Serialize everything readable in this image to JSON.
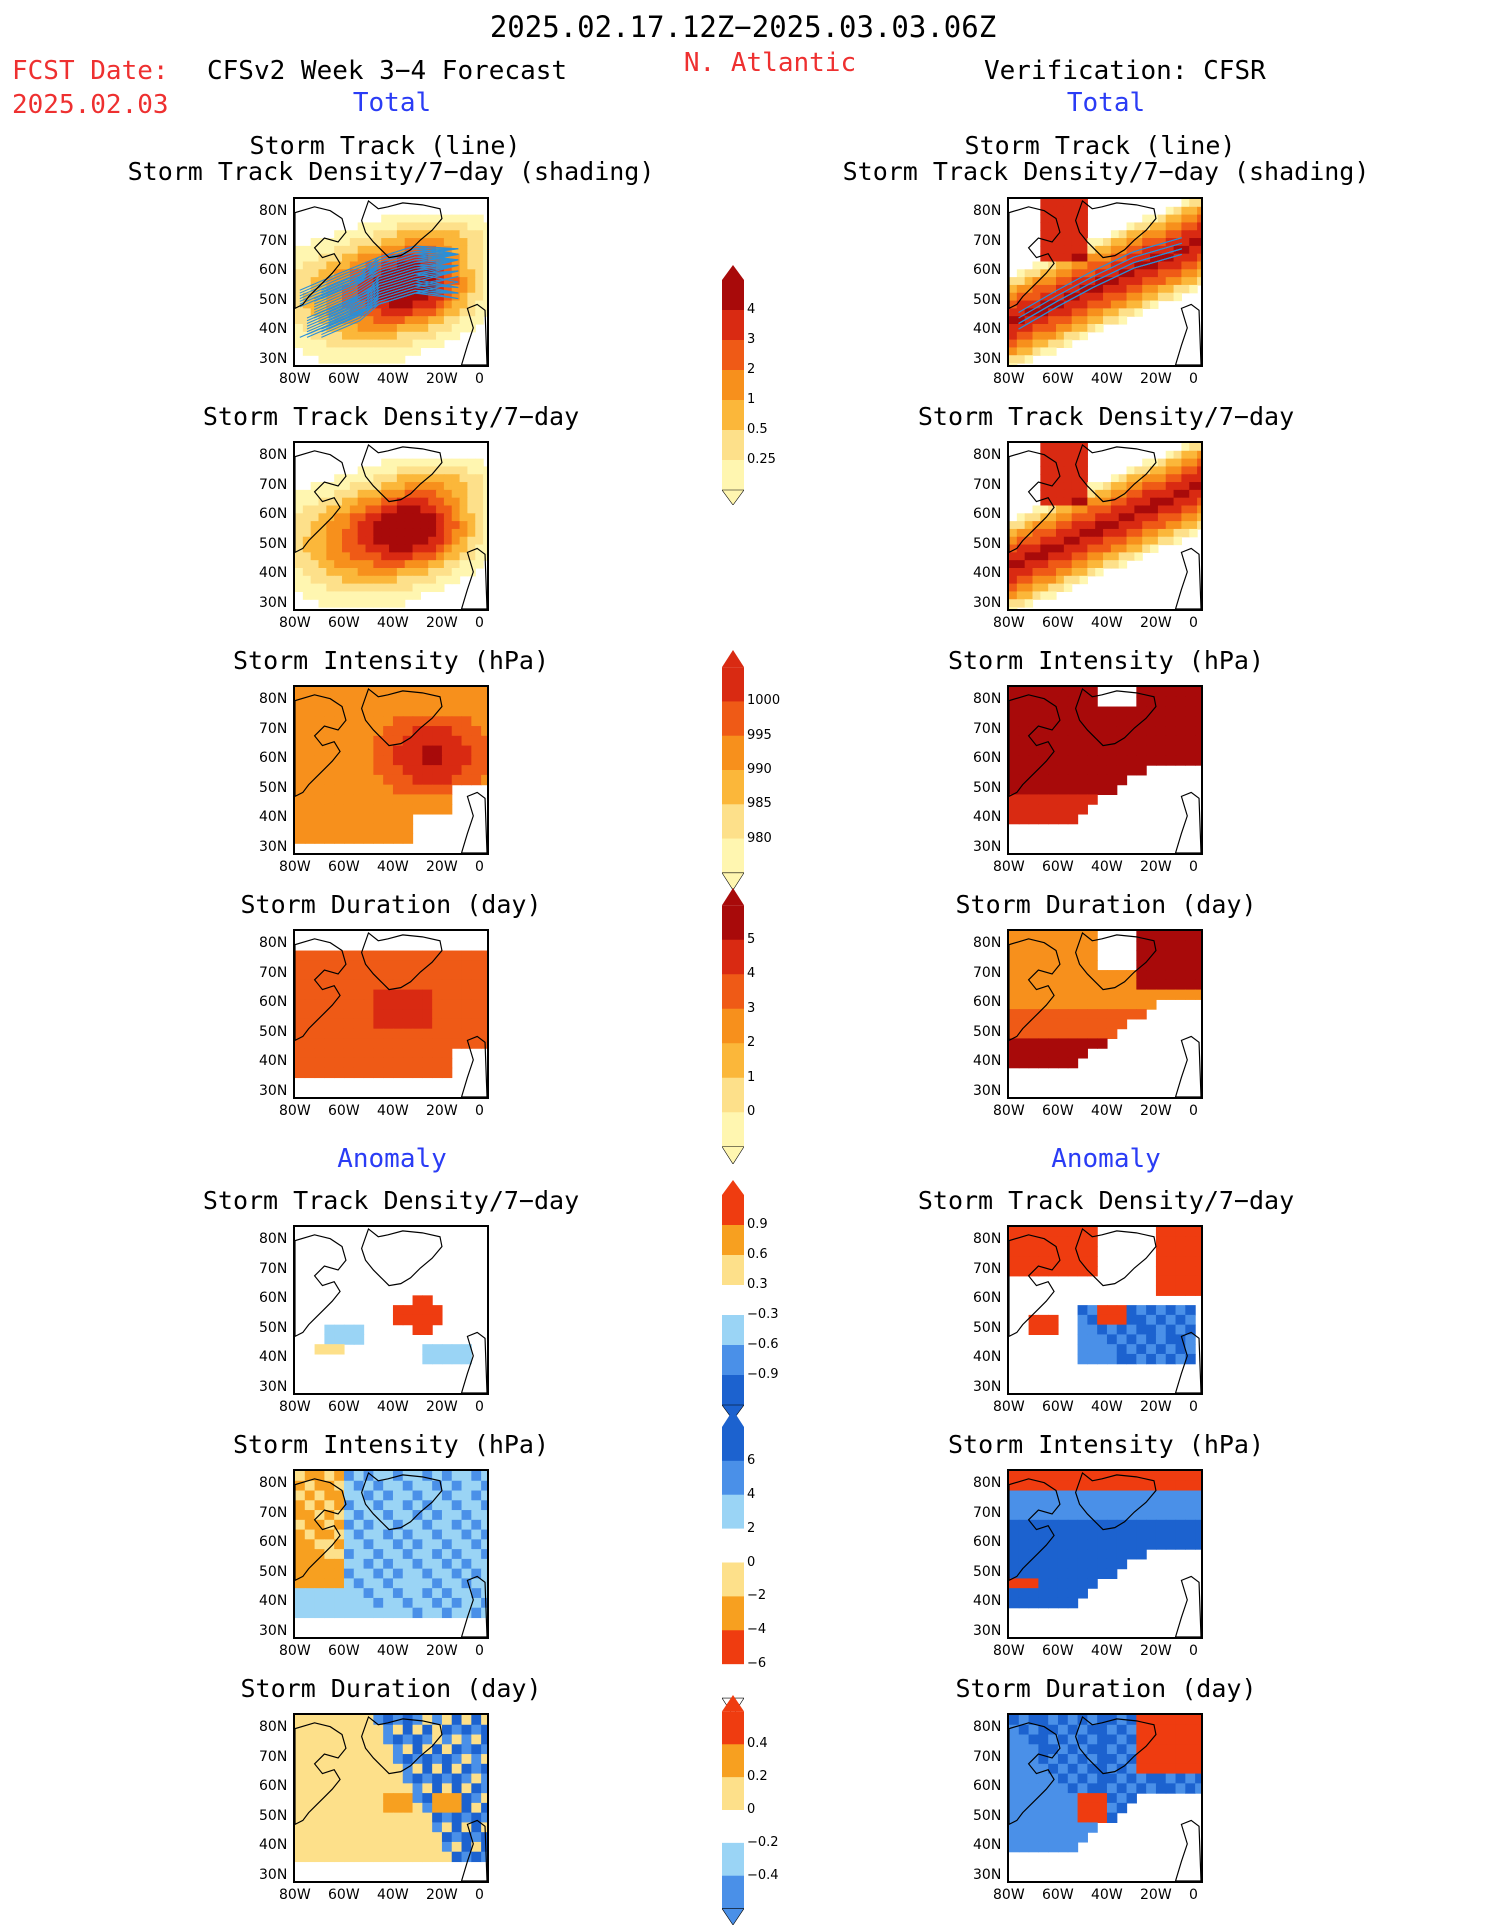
{
  "header": {
    "date_range": "2025.02.17.12Z−2025.03.03.06Z",
    "fcst_label": "FCST Date:",
    "fcst_date": "2025.02.03",
    "model": "CFSv2 Week 3−4 Forecast",
    "region": "N. Atlantic",
    "verification": "Verification: CFSR"
  },
  "sections": {
    "total_left": "Total",
    "total_right": "Total",
    "anomaly_left": "Anomaly",
    "anomaly_right": "Anomaly"
  },
  "axes": {
    "lat_ticks": [
      "80N",
      "70N",
      "60N",
      "50N",
      "40N",
      "30N"
    ],
    "lon_ticks": [
      "80W",
      "60W",
      "40W",
      "20W",
      "0"
    ]
  },
  "panel_titles": {
    "track_line": "Storm Track (line)",
    "track_shading": "Storm Track Density/7−day (shading)",
    "density": "Storm Track Density/7−day",
    "intensity": "Storm Intensity (hPa)",
    "duration": "Storm Duration (day)"
  },
  "colors": {
    "total_scale": [
      "#fff6b0",
      "#fde08a",
      "#fbb73a",
      "#f7901c",
      "#ef5a16",
      "#d92a12",
      "#a80a0a"
    ],
    "anomaly_scale": [
      "#1c62cf",
      "#4a90e8",
      "#9ad4f5",
      "#ffffff",
      "#fde08a",
      "#f7a020",
      "#ef3c10"
    ],
    "track_line": "#2a8fd8",
    "title_red": "#ee3030",
    "title_blue": "#2a3cf5"
  },
  "colorbars": [
    {
      "id": "track_density_total",
      "labels": [
        "4",
        "3",
        "2",
        "1",
        "0.5",
        "0.25"
      ]
    },
    {
      "id": "intensity_total",
      "labels": [
        "1000",
        "995",
        "990",
        "985",
        "980"
      ]
    },
    {
      "id": "duration_total",
      "labels": [
        "5",
        "4",
        "3",
        "2",
        "1",
        "0"
      ]
    },
    {
      "id": "track_density_anom",
      "labels": [
        "0.9",
        "0.6",
        "0.3",
        "−0.3",
        "−0.6",
        "−0.9"
      ]
    },
    {
      "id": "intensity_anom",
      "labels": [
        "6",
        "4",
        "2",
        "0",
        "−2",
        "−4",
        "−6"
      ]
    },
    {
      "id": "duration_anom",
      "labels": [
        "0.4",
        "0.2",
        "0",
        "−0.2",
        "−0.4"
      ]
    }
  ],
  "chart_data": {
    "type": "heatmap",
    "region": "N. Atlantic",
    "lat_range": [
      25,
      85
    ],
    "lon_range": [
      -80,
      0
    ],
    "panels": [
      {
        "side": "forecast",
        "row": "track",
        "title": "Storm Track (line) / Storm Track Density/7-day (shading)",
        "max_center": [
          55,
          -35
        ],
        "max_level": "4"
      },
      {
        "side": "forecast",
        "row": "density",
        "title": "Storm Track Density/7-day",
        "max_center": [
          56,
          -32
        ],
        "max_level": "4"
      },
      {
        "side": "forecast",
        "row": "intensity",
        "title": "Storm Intensity (hPa)",
        "min_center": [
          62,
          -25
        ],
        "min_level": "980"
      },
      {
        "side": "forecast",
        "row": "duration",
        "title": "Storm Duration (day)",
        "typical_level": "4"
      },
      {
        "side": "verification",
        "row": "track",
        "title": "Storm Track (line) / Storm Track Density/7-day (shading)",
        "max_band": "40N-80W to 70N-5W",
        "max_level": "4"
      },
      {
        "side": "verification",
        "row": "density",
        "title": "Storm Track Density/7-day",
        "max_band": "40N-80W to 70N-5W",
        "max_level": "4"
      },
      {
        "side": "verification",
        "row": "intensity",
        "title": "Storm Intensity (hPa)",
        "min_level": "980"
      },
      {
        "side": "verification",
        "row": "duration",
        "title": "Storm Duration (day)",
        "max_level": "5"
      },
      {
        "side": "forecast",
        "row": "density_anomaly",
        "title": "Storm Track Density/7-day",
        "max_center": [
          55,
          -32
        ],
        "max_level": "0.9"
      },
      {
        "side": "forecast",
        "row": "intensity_anomaly",
        "title": "Storm Intensity (hPa)",
        "typical_level": "-2"
      },
      {
        "side": "forecast",
        "row": "duration_anomaly",
        "title": "Storm Duration (day)",
        "mixed": true
      },
      {
        "side": "verification",
        "row": "density_anomaly",
        "title": "Storm Track Density/7-day",
        "mixed": true
      },
      {
        "side": "verification",
        "row": "intensity_anomaly",
        "title": "Storm Intensity (hPa)",
        "typical_level": "-4"
      },
      {
        "side": "verification",
        "row": "duration_anomaly",
        "title": "Storm Duration (day)",
        "mixed": true
      }
    ]
  }
}
